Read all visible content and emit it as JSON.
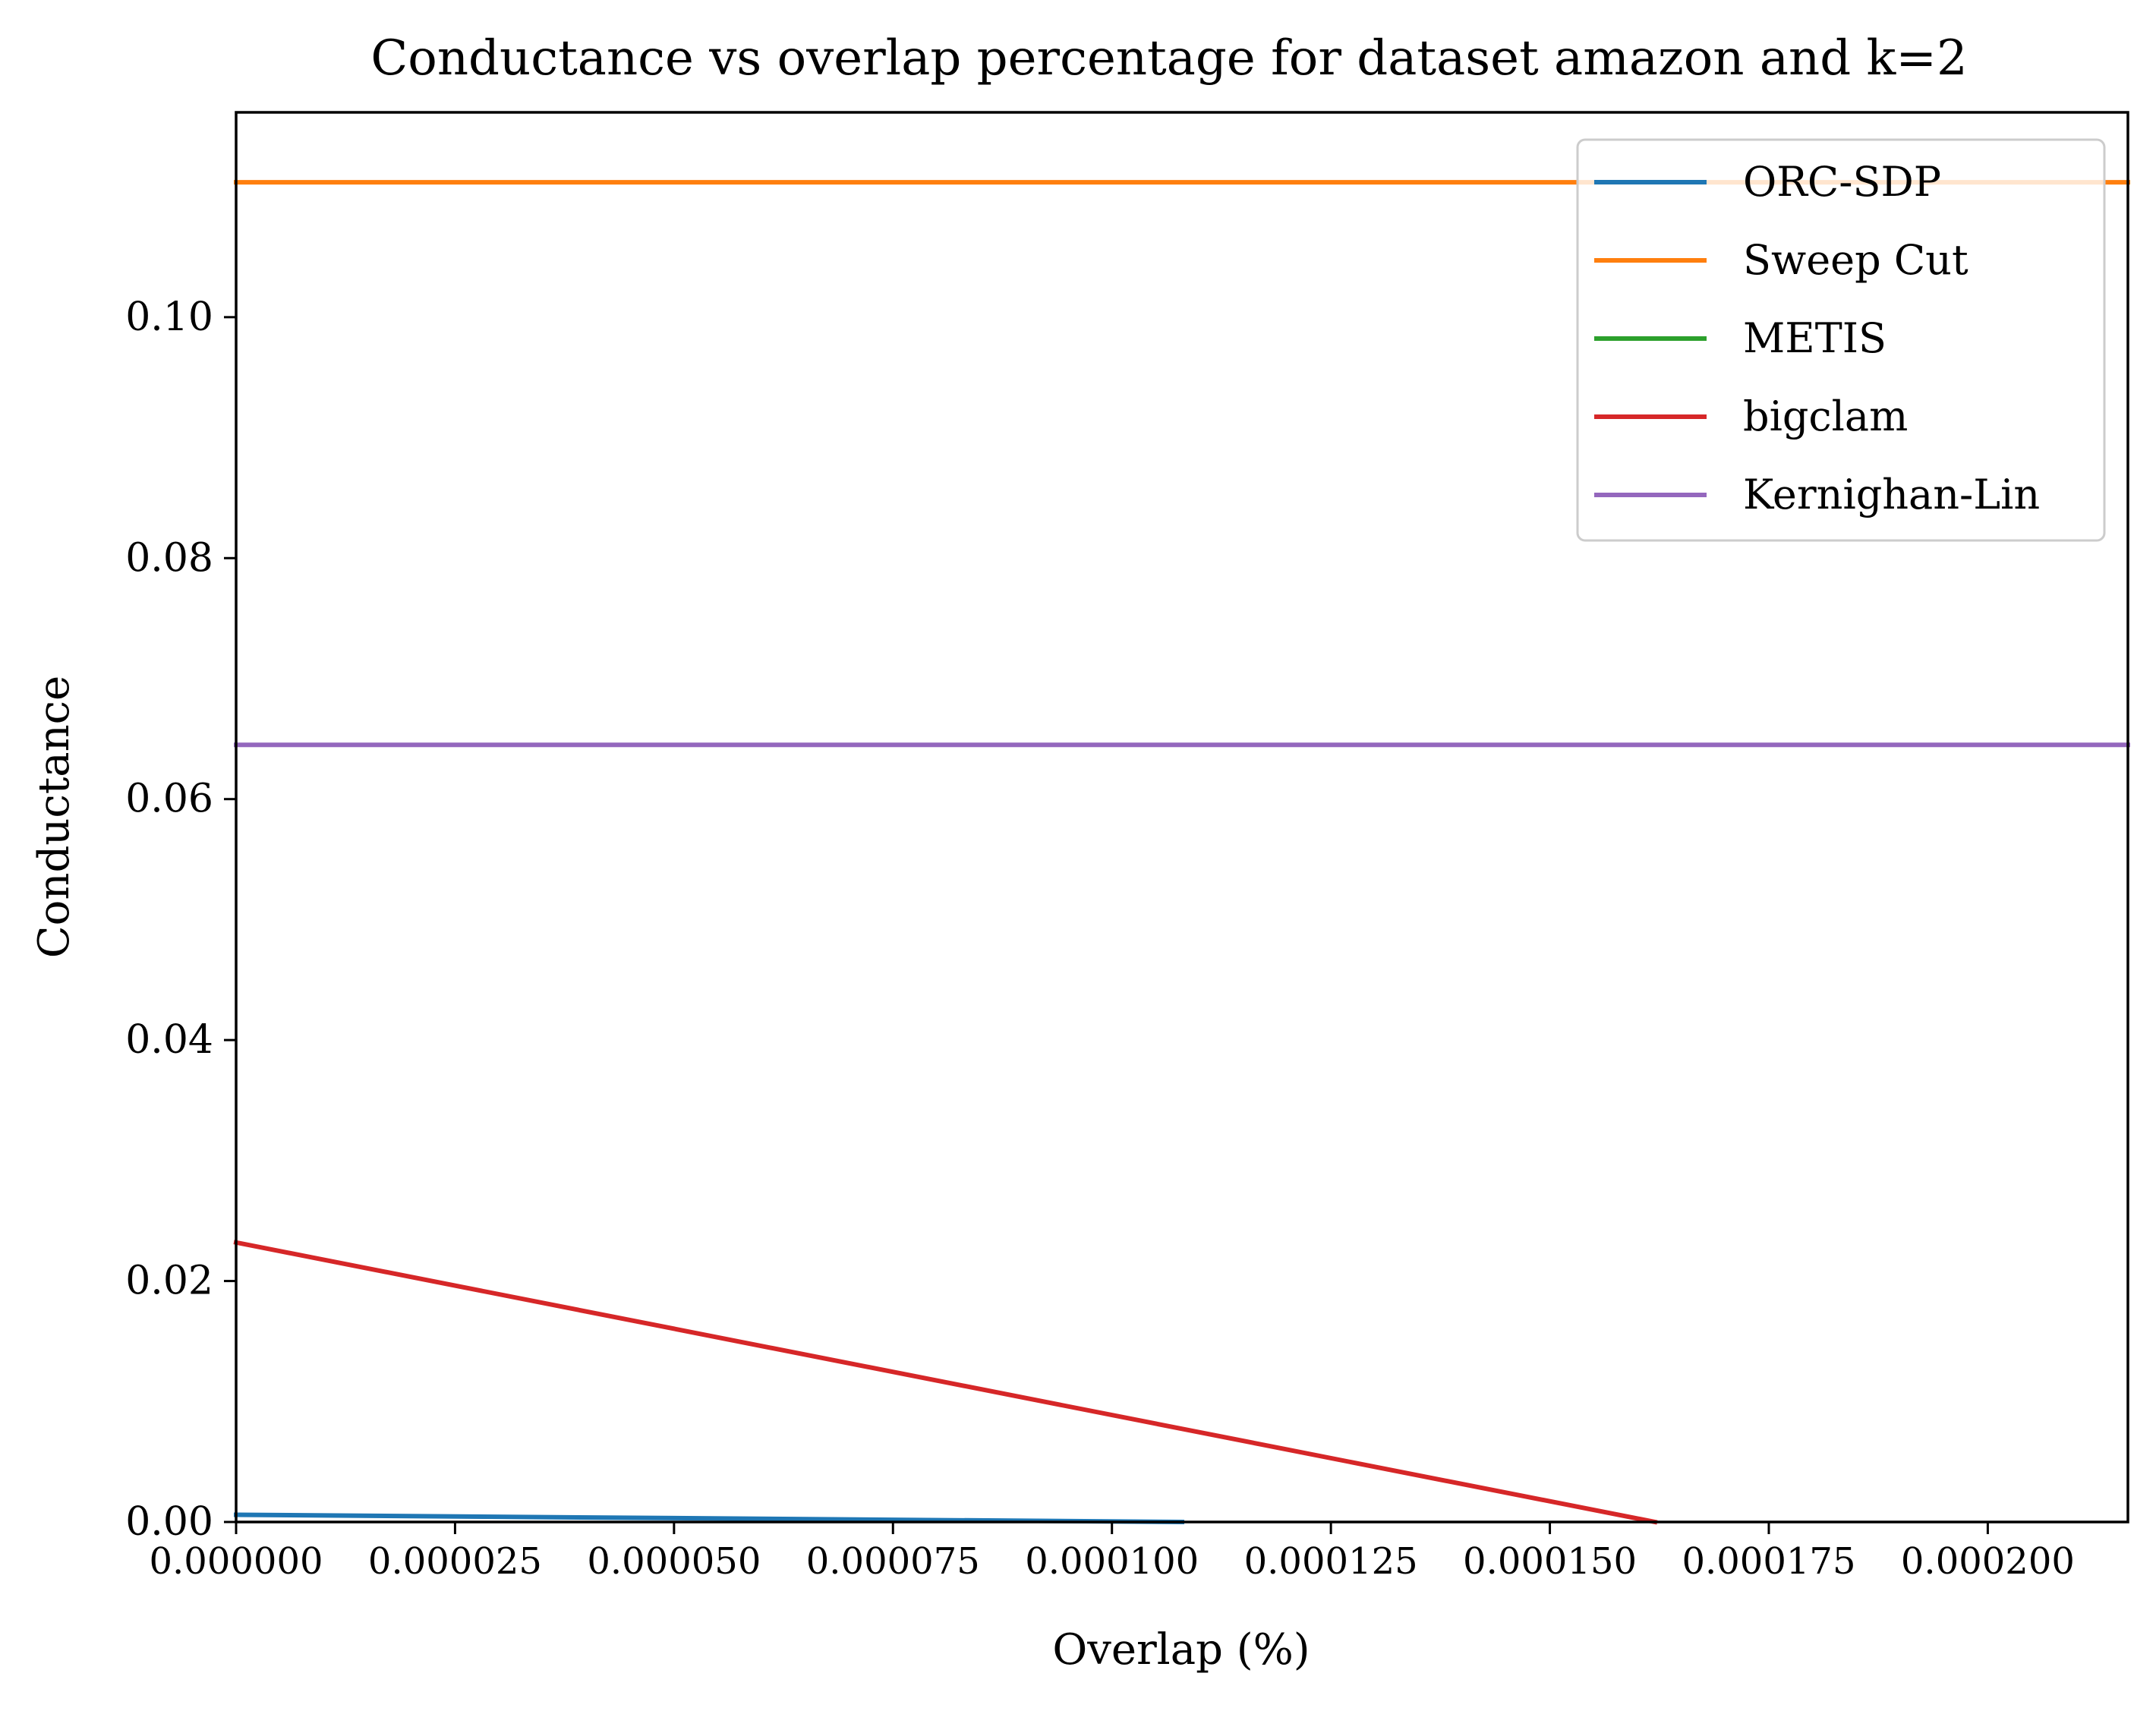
{
  "chart_data": {
    "type": "line",
    "title": "Conductance vs overlap percentage for dataset amazon and k=2",
    "xlabel": "Overlap (%)",
    "ylabel": "Conductance",
    "xlim": [
      0,
      0.000216
    ],
    "ylim": [
      0,
      0.117
    ],
    "x_ticks": [
      0,
      2.5e-05,
      5e-05,
      7.5e-05,
      0.0001,
      0.000125,
      0.00015,
      0.000175,
      0.0002
    ],
    "x_tick_labels": [
      "0.000000",
      "0.000025",
      "0.000050",
      "0.000075",
      "0.000100",
      "0.000125",
      "0.000150",
      "0.000175",
      "0.000200"
    ],
    "y_ticks": [
      0,
      0.02,
      0.04,
      0.06,
      0.08,
      0.1
    ],
    "y_tick_labels": [
      "0.00",
      "0.02",
      "0.04",
      "0.06",
      "0.08",
      "0.10"
    ],
    "grid": false,
    "legend_position": "top-right",
    "series": [
      {
        "name": "ORC-SDP",
        "color": "#1f77b4",
        "x": [
          0,
          0.000108
        ],
        "y": [
          0.0006,
          0.0
        ]
      },
      {
        "name": "Sweep Cut",
        "color": "#ff7f0e",
        "x": [
          0,
          0.000216
        ],
        "y": [
          0.1112,
          0.1112
        ]
      },
      {
        "name": "METIS",
        "color": "#2ca02c",
        "x": [],
        "y": []
      },
      {
        "name": "bigclam",
        "color": "#d62728",
        "x": [
          0,
          0.000162
        ],
        "y": [
          0.0232,
          0.0
        ]
      },
      {
        "name": "Kernighan-Lin",
        "color": "#9467bd",
        "x": [
          0,
          0.000216
        ],
        "y": [
          0.0645,
          0.0645
        ]
      }
    ]
  }
}
